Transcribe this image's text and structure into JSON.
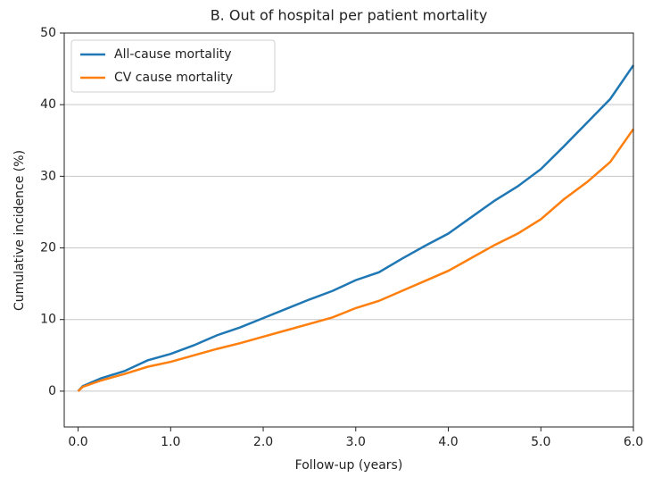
{
  "chart_data": {
    "type": "line",
    "title": "B. Out of hospital per patient mortality",
    "xlabel": "Follow-up (years)",
    "ylabel": "Cumulative incidence (%)",
    "x": [
      0,
      0.05,
      0.25,
      0.5,
      0.75,
      1.0,
      1.25,
      1.5,
      1.75,
      2.0,
      2.25,
      2.5,
      2.75,
      3.0,
      3.25,
      3.5,
      3.75,
      4.0,
      4.25,
      4.5,
      4.75,
      5.0,
      5.25,
      5.5,
      5.75,
      6.0
    ],
    "series": [
      {
        "name": "All-cause mortality",
        "color": "#1f77b4",
        "values": [
          0,
          0.7,
          1.8,
          2.8,
          4.3,
          5.2,
          6.4,
          7.8,
          8.9,
          10.2,
          11.5,
          12.8,
          14.0,
          15.5,
          16.6,
          18.5,
          20.3,
          22.0,
          24.3,
          26.6,
          28.6,
          31.0,
          34.2,
          37.5,
          40.8,
          45.5
        ]
      },
      {
        "name": "CV cause mortality",
        "color": "#ff7f0e",
        "values": [
          0,
          0.6,
          1.5,
          2.4,
          3.4,
          4.1,
          5.0,
          5.9,
          6.7,
          7.6,
          8.5,
          9.4,
          10.3,
          11.6,
          12.6,
          14.0,
          15.4,
          16.8,
          18.6,
          20.4,
          22.0,
          24.0,
          26.8,
          29.2,
          32.0,
          36.6
        ]
      }
    ],
    "xlim": [
      -0.15,
      6.0
    ],
    "xticks": [
      {
        "value": 0,
        "label": "0.0"
      },
      {
        "value": 1,
        "label": "1.0"
      },
      {
        "value": 2,
        "label": "2.0"
      },
      {
        "value": 3,
        "label": "3.0"
      },
      {
        "value": 4,
        "label": "4.0"
      },
      {
        "value": 5,
        "label": "5.0"
      },
      {
        "value": 6,
        "label": "6.0"
      }
    ],
    "ylim": [
      -5,
      50
    ],
    "yticks": [
      0,
      10,
      20,
      30,
      40,
      50
    ],
    "grid": "y",
    "legend": "upper left"
  }
}
